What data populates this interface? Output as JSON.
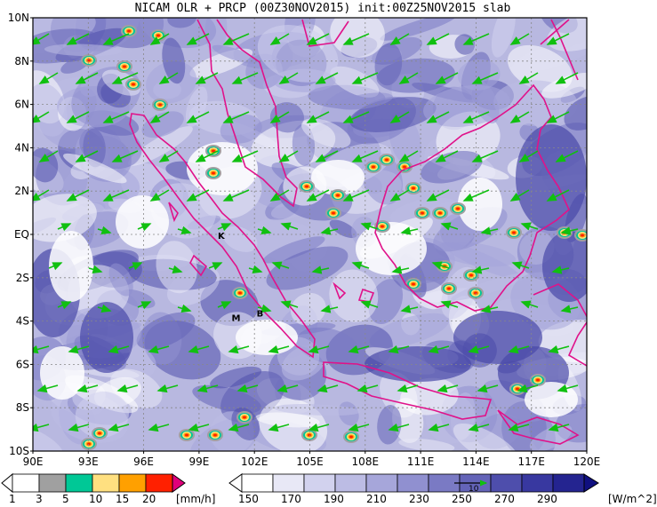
{
  "title": "NICAM OLR + PRCP (00Z30NOV2015) init:00Z25NOV2015 slab",
  "lat_labels": [
    "10N",
    "8N",
    "6N",
    "4N",
    "2N",
    "EQ",
    "2S",
    "4S",
    "6S",
    "8S",
    "10S"
  ],
  "lon_labels": [
    "90E",
    "93E",
    "96E",
    "99E",
    "102E",
    "105E",
    "108E",
    "111E",
    "114E",
    "117E",
    "120E"
  ],
  "place_labels": [
    {
      "text": "K",
      "lon": 100.2,
      "lat": -0.2
    },
    {
      "text": "B",
      "lon": 102.3,
      "lat": -3.8
    },
    {
      "text": "M",
      "lon": 101.0,
      "lat": -4.0
    }
  ],
  "precip_colorbar": {
    "colors": [
      "#ffffff",
      "#a0a0a0",
      "#00c896",
      "#ffe080",
      "#ffa000",
      "#ff2000",
      "#e0007a"
    ],
    "labels": [
      "1",
      "3",
      "5",
      "10",
      "15",
      "20"
    ],
    "unit": "[mm/h]"
  },
  "olr_colorbar": {
    "colors": [
      "#ffffff",
      "#e8e8f6",
      "#d2d2ee",
      "#bcbce4",
      "#a6a6da",
      "#9090d0",
      "#7a7ac4",
      "#6464b8",
      "#4e4eac",
      "#3838a0",
      "#242490",
      "#101080"
    ],
    "labels": [
      "150",
      "170",
      "190",
      "210",
      "230",
      "250",
      "270",
      "290"
    ],
    "unit": "[W/m^2]",
    "vector_ref_label": "10"
  },
  "colors": {
    "coast": "#e0128a",
    "wind": "#10c010",
    "grid": "#888888"
  }
}
